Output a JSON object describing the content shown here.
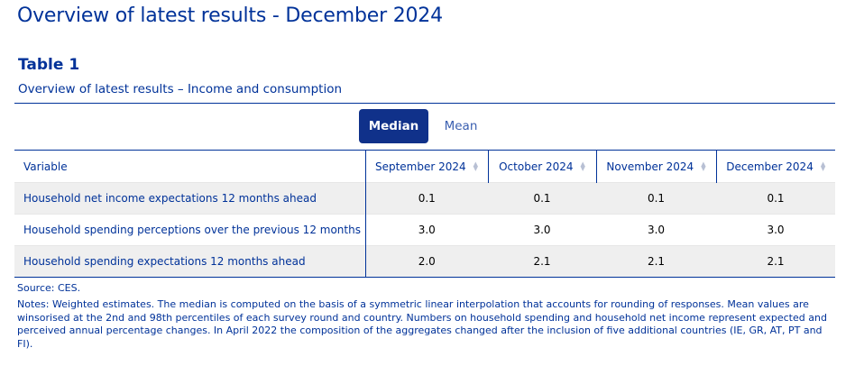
{
  "page": {
    "title": "Overview of latest results - December 2024"
  },
  "table": {
    "label": "Table 1",
    "subtitle": "Overview of latest results – Income and consumption",
    "toggle": {
      "median_label": "Median",
      "mean_label": "Mean",
      "selected": "Median"
    },
    "columns": [
      "Variable",
      "September 2024",
      "October 2024",
      "November 2024",
      "December 2024"
    ],
    "rows": [
      {
        "variable": "Household net income expectations 12 months ahead",
        "values": [
          "0.1",
          "0.1",
          "0.1",
          "0.1"
        ]
      },
      {
        "variable": "Household spending perceptions over the previous 12 months",
        "values": [
          "3.0",
          "3.0",
          "3.0",
          "3.0"
        ]
      },
      {
        "variable": "Household spending expectations 12 months ahead",
        "values": [
          "2.0",
          "2.1",
          "2.1",
          "2.1"
        ]
      }
    ],
    "source": "Source: CES.",
    "notes": "Notes: Weighted estimates. The median is computed on the basis of a symmetric linear interpolation that accounts for rounding of responses. Mean values are winsorised at the 2nd and 98th percentiles of each survey round and country. Numbers on household spending and household net income represent expected and perceived annual percentage changes. In April 2022 the composition of the aggregates changed after the inclusion of five additional countries (IE, GR, AT, PT and FI)."
  },
  "icons": {
    "sort": "sort-arrows-icon"
  },
  "colors": {
    "primary": "#003299",
    "toggle_active": "#10318a",
    "row_shade": "#efefef"
  }
}
